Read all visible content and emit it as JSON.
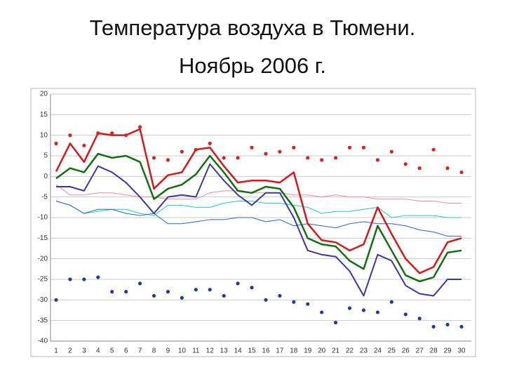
{
  "chart_data": {
    "type": "line",
    "title_lines": [
      "Температура воздуха в Тюмени.",
      "Ноябрь 2006 г."
    ],
    "categories": [
      1,
      2,
      3,
      4,
      5,
      6,
      7,
      8,
      9,
      10,
      11,
      12,
      13,
      14,
      15,
      16,
      17,
      18,
      19,
      20,
      21,
      22,
      23,
      24,
      25,
      26,
      27,
      28,
      29,
      30
    ],
    "ylim": [
      -40,
      20
    ],
    "yticks": [
      -40,
      -35,
      -30,
      -25,
      -20,
      -15,
      -10,
      -5,
      0,
      5,
      10,
      15,
      20
    ],
    "grid": true,
    "series": [
      {
        "color": "#f08c96",
        "width": 1,
        "mode": "lines",
        "values": [
          -2,
          -4.5,
          -4.5,
          -4,
          -4,
          -4.5,
          -5,
          -5,
          -5.5,
          -5.5,
          -5.5,
          -4,
          -3.5,
          -3.5,
          -4,
          -4,
          -4,
          -4.5,
          -4.5,
          -5,
          -4.5,
          -5,
          -5,
          -5.5,
          -5.5,
          -5.5,
          -6,
          -6,
          -6.5,
          -6.5
        ]
      },
      {
        "color": "#20d0b0",
        "width": 1,
        "mode": "lines",
        "values": [
          -6,
          -7,
          -9,
          -8.5,
          -8,
          -8,
          -9,
          -9.5,
          -7,
          -7,
          -7.5,
          -7.5,
          -6.5,
          -6,
          -6,
          -6.5,
          -6.5,
          -7,
          -7.5,
          -9,
          -8.5,
          -8.5,
          -8,
          -7.5,
          -10,
          -9.5,
          -9.5,
          -9.5,
          -10,
          -10
        ]
      },
      {
        "color": "#2860d0",
        "width": 1,
        "mode": "lines",
        "values": [
          -6,
          -7,
          -9,
          -8,
          -8,
          -9,
          -9.5,
          -9,
          -11.5,
          -11.5,
          -11,
          -10.5,
          -10.5,
          -10,
          -10,
          -11,
          -10.5,
          -12,
          -11.5,
          -12,
          -12.5,
          -11.5,
          -11,
          -11.5,
          -11.5,
          -12,
          -13,
          -13.5,
          -14.5,
          -14.5
        ]
      },
      {
        "color": "#d81818",
        "width": 2.5,
        "mode": "lines",
        "values": [
          1.2,
          8,
          3.5,
          10.5,
          10,
          10,
          11.5,
          -3,
          0.3,
          1,
          6.5,
          7,
          2.5,
          -1.5,
          -1,
          -1,
          -1.5,
          1,
          -11.5,
          -15.5,
          -16,
          -18,
          -16.5,
          -7.5,
          -14,
          -20,
          -23.5,
          -22,
          -16,
          -15
        ]
      },
      {
        "color": "#107010",
        "width": 2.5,
        "mode": "lines",
        "values": [
          -0.5,
          2,
          1,
          5.5,
          4.5,
          5,
          3.5,
          -5.5,
          -3,
          -2,
          0.5,
          5,
          1,
          -3.5,
          -4,
          -2.5,
          -3,
          -7.5,
          -15,
          -16.5,
          -17,
          -20.5,
          -22.5,
          -12,
          -18,
          -24,
          -25.5,
          -24.5,
          -18.5,
          -18
        ]
      },
      {
        "color": "#3838a8",
        "width": 2,
        "mode": "lines",
        "values": [
          -2.5,
          -2.5,
          -3.5,
          2.5,
          1,
          -1.5,
          -5,
          -9,
          -5,
          -4.5,
          -5,
          3,
          -1,
          -4.5,
          -7,
          -4,
          -4,
          -10,
          -18,
          -19,
          -19.5,
          -23,
          -29,
          -19,
          -20.5,
          -26.5,
          -28.5,
          -29,
          -25,
          -25
        ]
      },
      {
        "color": "#e02020",
        "width": 0,
        "mode": "markers",
        "values": [
          8,
          10,
          7.5,
          10.5,
          10.5,
          10,
          12,
          4.5,
          4,
          6,
          6.5,
          8,
          4.5,
          4.5,
          7,
          5.5,
          6,
          7,
          4.5,
          4,
          4.5,
          7,
          7,
          4,
          6,
          3,
          2,
          6.5,
          2,
          1
        ]
      },
      {
        "color": "#2838a0",
        "width": 0,
        "mode": "markers",
        "values": [
          -30,
          -25,
          -25,
          -24.5,
          -28,
          -28,
          -26,
          -29,
          -28,
          -29.5,
          -27.5,
          -27.5,
          -29,
          -26,
          -27,
          -30,
          -29,
          -30.5,
          -31,
          -33,
          -35.5,
          -32,
          -32.5,
          -33,
          -30.5,
          -33.5,
          -34.5,
          -36.5,
          -36,
          -36.5
        ]
      }
    ]
  }
}
